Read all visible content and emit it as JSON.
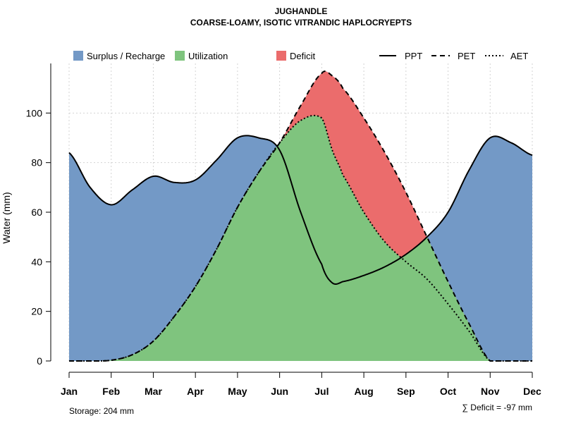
{
  "chart_data": {
    "type": "area",
    "title": "JUGHANDLE",
    "subtitle": "COARSE-LOAMY, ISOTIC VITRANDIC HAPLOCRYEPTS",
    "xlabel": "",
    "ylabel": "Water (mm)",
    "ylim": [
      0,
      120
    ],
    "yticks": [
      "0",
      "20",
      "40",
      "60",
      "80",
      "100"
    ],
    "categories": [
      "Jan",
      "Feb",
      "Mar",
      "Apr",
      "May",
      "Jun",
      "Jul",
      "Aug",
      "Sep",
      "Oct",
      "Nov",
      "Dec"
    ],
    "x": [
      1.0,
      1.5,
      2.0,
      2.5,
      3.0,
      3.5,
      4.0,
      4.5,
      5.0,
      5.5,
      6.0,
      6.5,
      7.0,
      7.25,
      7.5,
      8.0,
      8.5,
      9.0,
      9.5,
      10.0,
      10.5,
      11.0,
      11.5,
      12.0
    ],
    "series": [
      {
        "name": "PPT",
        "line": "solid",
        "values": [
          84,
          70,
          63,
          69,
          74.5,
          72,
          73,
          81,
          90,
          90,
          85,
          60,
          39,
          31.5,
          32,
          34.5,
          38,
          43,
          50,
          60,
          77,
          90,
          88,
          83
        ]
      },
      {
        "name": "PET",
        "line": "dashed",
        "values": [
          0,
          0,
          0.3,
          2.5,
          8,
          18,
          30,
          45,
          62,
          76,
          88,
          103,
          116,
          115,
          110,
          98,
          84,
          68,
          50,
          32,
          15,
          0,
          0,
          0
        ]
      },
      {
        "name": "AET",
        "line": "dotted",
        "values": [
          0,
          0,
          0.3,
          2.5,
          8,
          18,
          30,
          45,
          62,
          76,
          88,
          97,
          98,
          85,
          75,
          60,
          48,
          40,
          33,
          23,
          12,
          0,
          0,
          0
        ]
      }
    ],
    "legend": {
      "fills": [
        {
          "label": "Surplus / Recharge",
          "color": "#7399c6"
        },
        {
          "label": "Utilization",
          "color": "#7fc47e"
        },
        {
          "label": "Deficit",
          "color": "#eb6c6c"
        }
      ],
      "lines": [
        {
          "label": "PPT",
          "style": "solid"
        },
        {
          "label": "PET",
          "style": "dashed"
        },
        {
          "label": "AET",
          "style": "dotted"
        }
      ],
      "position": "top"
    },
    "grid": true,
    "annotations": {
      "storage": "Storage: 204 mm",
      "deficit": "∑ Deficit = -97 mm"
    }
  }
}
